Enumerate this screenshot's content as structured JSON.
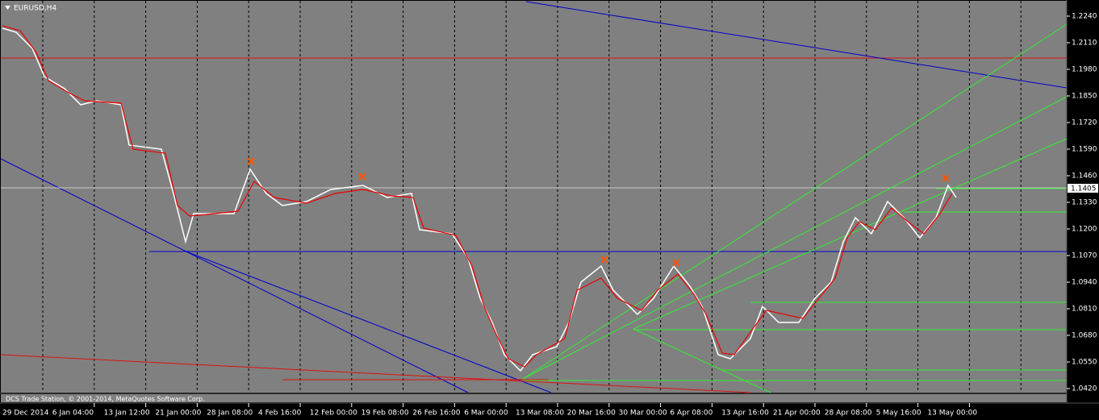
{
  "window": {
    "title": "EURUSD,H4",
    "current_price": "1.1405",
    "copyright": "DCS Trade Station, © 2001-2014, MetaQuotes Software Corp."
  },
  "price_axis": [
    "1.2240",
    "1.2110",
    "1.1980",
    "1.1850",
    "1.1720",
    "1.1590",
    "1.1460",
    "1.1330",
    "1.1200",
    "1.1070",
    "1.0940",
    "1.0810",
    "1.0680",
    "1.0550",
    "1.0420"
  ],
  "time_axis": [
    "29 Dec 2014",
    "6 Jan 04:00",
    "13 Jan 12:00",
    "21 Jan 00:00",
    "28 Jan 08:00",
    "4 Feb 16:00",
    "12 Feb 00:00",
    "19 Feb 08:00",
    "26 Feb 16:00",
    "6 Mar 00:00",
    "13 Mar 08:00",
    "20 Mar 16:00",
    "30 Mar 00:00",
    "6 Apr 08:00",
    "13 Apr 16:00",
    "21 Apr 00:00",
    "28 Apr 08:00",
    "5 May 16:00",
    "13 May 00:00"
  ]
}
